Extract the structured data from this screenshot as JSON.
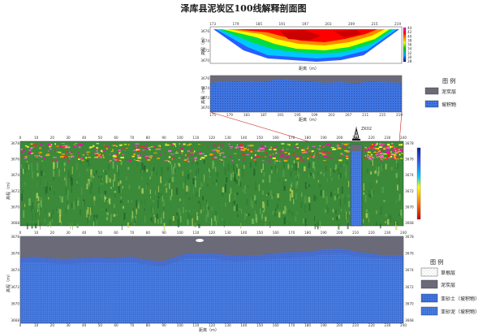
{
  "title": "泽库县泥炭区100线解释剖面图",
  "top_profile": {
    "x_ticks": [
      "173",
      "179",
      "185",
      "191",
      "197",
      "203",
      "209",
      "215",
      "219"
    ],
    "x_ticks_display": [
      "175",
      "179",
      "183",
      "187",
      "191",
      "195",
      "199",
      "203",
      "207",
      "211",
      "215",
      "219"
    ],
    "y_ticks": [
      "3676",
      "3674",
      "3672",
      "3670"
    ],
    "y_label": "高程（m）",
    "x_label": "距离（m）",
    "colorbar_ticks": [
      "44",
      "42",
      "40",
      "38",
      "36",
      "34",
      "32",
      "30",
      "28"
    ]
  },
  "top_interp": {
    "y_ticks": [
      "3676",
      "3674",
      "3672",
      "3670"
    ],
    "y_label": "高程（m）",
    "x_label": "距离（m）"
  },
  "top_legend": {
    "title": "图 例",
    "items": [
      "泥炭层",
      "坡积物"
    ]
  },
  "drill_label": "ZK02",
  "main_profile": {
    "x_ticks": [
      "0",
      "10",
      "20",
      "30",
      "40",
      "50",
      "60",
      "70",
      "80",
      "90",
      "100",
      "110",
      "120",
      "130",
      "140",
      "150",
      "160",
      "170",
      "180",
      "190",
      "200",
      "210",
      "220",
      "230",
      "240"
    ],
    "y_ticks": [
      "3678",
      "3676",
      "3674",
      "3672",
      "3670",
      "3668"
    ],
    "y_label": "高程（m）"
  },
  "main_interp": {
    "x_ticks": [
      "0",
      "10",
      "20",
      "30",
      "40",
      "50",
      "60",
      "70",
      "80",
      "90",
      "100",
      "110",
      "120",
      "130",
      "140",
      "150",
      "160",
      "170",
      "180",
      "190",
      "200",
      "210",
      "220",
      "230",
      "240"
    ],
    "y_ticks": [
      "3678",
      "3676",
      "3674",
      "3672",
      "3670",
      "3668"
    ],
    "y_label": "高程（m）",
    "x_label": "距离（m）"
  },
  "main_legend": {
    "title": "图 例",
    "items": [
      "草根层",
      "泥炭层",
      "亚砂土（坡积物）",
      "亚砂泥（坡积物）"
    ]
  },
  "colors": {
    "peat": "#6a6a78",
    "slope": "#3f74e0",
    "radar_green": "#3a8a3a"
  }
}
